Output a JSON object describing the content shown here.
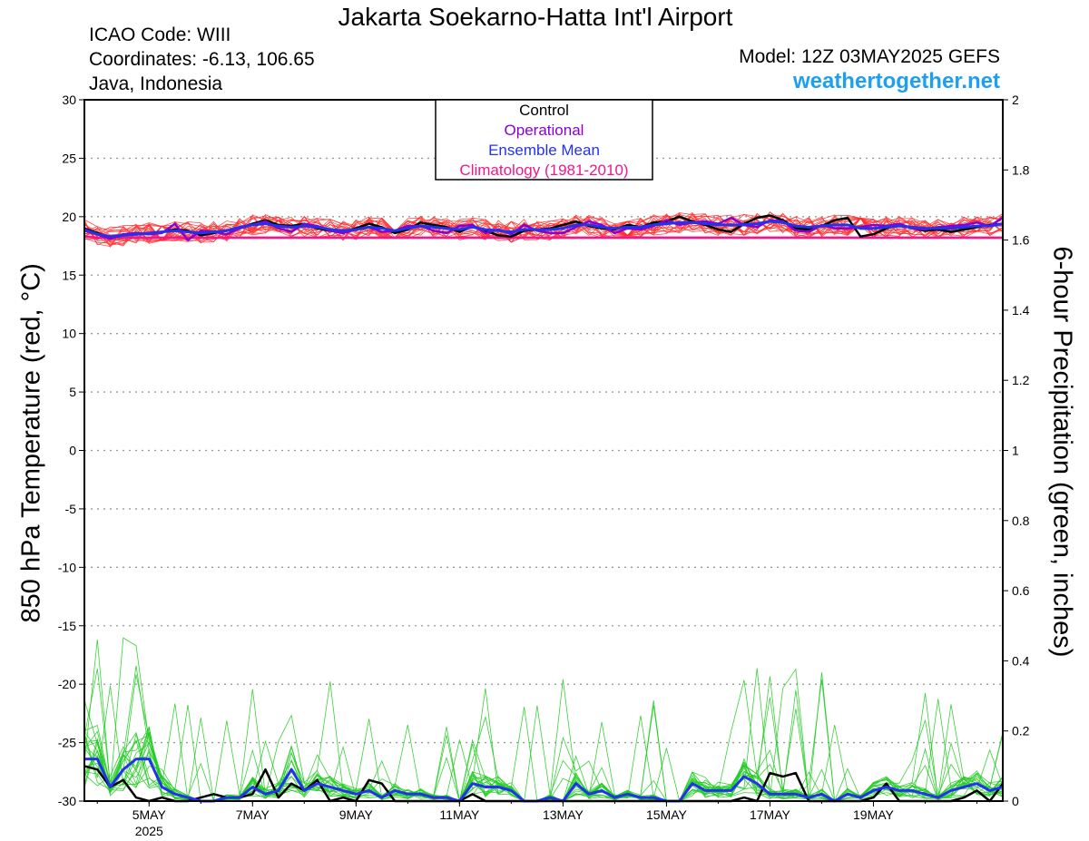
{
  "header": {
    "title": "Jakarta Soekarno-Hatta Int'l Airport",
    "icao": "ICAO Code: WIII",
    "coordinates": "Coordinates: -6.13, 106.65",
    "region": "Java, Indonesia",
    "model": "Model: 12Z 03MAY2025 GEFS",
    "site": "weathertogether.net"
  },
  "colors": {
    "control": "#000000",
    "operational": "#8a00d4",
    "ensemble_mean": "#2233ee",
    "climatology": "#f0188c",
    "members_temp": "#ff2a2a",
    "members_precip": "#22cc22",
    "site": "#1ea0f0"
  },
  "chart_data": {
    "type": "line",
    "ylabel": "850 hPa Temperature (red, °C)",
    "ylabel_right": "6-hour Precipitation (green, inches)",
    "ylim": [
      -30,
      30
    ],
    "ylim_right": [
      0,
      2
    ],
    "yticks": [
      "30",
      "25",
      "20",
      "15",
      "10",
      "5",
      "0",
      "-5",
      "-10",
      "-15",
      "-20",
      "-25",
      "-30"
    ],
    "yticks_right": [
      "2",
      "1.8",
      "1.6",
      "1.4",
      "1.2",
      "1",
      "0.8",
      "0.6",
      "0.4",
      "0.2",
      "0"
    ],
    "xtick_labels": [
      "5MAY",
      "7MAY",
      "9MAY",
      "11MAY",
      "13MAY",
      "15MAY",
      "17MAY",
      "19MAY"
    ],
    "xtick_sublabel": "2025",
    "x_start": "2025-05-03 18Z",
    "x_step_hours": 6,
    "grid": true,
    "legend_position": "top-center",
    "legend": [
      "Control",
      "Operational",
      "Ensemble Mean",
      "Climatology (1981-2010)"
    ],
    "series": [
      {
        "name": "Control",
        "axis": "temp",
        "values": [
          19.0,
          18.6,
          18.2,
          18.4,
          18.6,
          18.5,
          18.7,
          18.9,
          18.8,
          18.4,
          18.6,
          18.8,
          19.0,
          19.4,
          19.7,
          19.3,
          19.2,
          19.4,
          19.0,
          18.8,
          18.7,
          19.0,
          19.4,
          19.1,
          18.6,
          18.9,
          19.5,
          19.3,
          19.1,
          18.7,
          19.2,
          18.8,
          18.4,
          18.3,
          18.8,
          18.9,
          19.0,
          19.3,
          19.6,
          19.2,
          19.0,
          18.9,
          19.3,
          19.1,
          19.5,
          19.6,
          20.0,
          19.6,
          19.3,
          18.9,
          18.7,
          19.4,
          19.9,
          20.1,
          19.7,
          19.0,
          18.9,
          19.2,
          19.7,
          19.9,
          18.3,
          18.5,
          19.0,
          19.3,
          19.0,
          18.8,
          18.9,
          18.7,
          18.9,
          19.1,
          19.3,
          19.4
        ]
      },
      {
        "name": "Operational",
        "axis": "temp",
        "values": [
          18.8,
          18.5,
          18.1,
          18.5,
          18.6,
          18.5,
          18.6,
          19.4,
          18.0,
          18.8,
          18.7,
          18.5,
          19.0,
          19.3,
          19.6,
          19.0,
          18.7,
          19.4,
          19.2,
          18.8,
          18.6,
          18.9,
          19.1,
          18.7,
          18.8,
          19.2,
          19.2,
          18.8,
          18.6,
          19.2,
          19.3,
          18.6,
          18.9,
          18.5,
          19.3,
          18.8,
          18.6,
          18.6,
          19.1,
          19.6,
          19.3,
          18.6,
          19.0,
          18.9,
          19.2,
          19.7,
          19.3,
          19.5,
          19.6,
          19.4,
          19.9,
          19.3,
          19.1,
          19.7,
          19.6,
          18.8,
          18.7,
          19.3,
          19.0,
          19.0,
          19.1,
          19.3,
          19.2,
          19.4,
          19.0,
          18.9,
          19.1,
          19.2,
          19.3,
          19.5,
          19.2,
          19.9
        ]
      },
      {
        "name": "Ensemble Mean",
        "axis": "temp",
        "values": [
          18.9,
          18.5,
          18.3,
          18.4,
          18.5,
          18.6,
          18.7,
          18.8,
          18.7,
          18.6,
          18.7,
          18.8,
          19.1,
          19.3,
          19.4,
          19.2,
          19.1,
          19.2,
          19.1,
          18.9,
          18.8,
          18.9,
          19.1,
          19.0,
          18.8,
          19.0,
          19.2,
          19.1,
          19.0,
          18.9,
          19.1,
          18.9,
          18.8,
          18.7,
          18.9,
          18.9,
          18.9,
          19.0,
          19.3,
          19.3,
          19.1,
          19.0,
          19.1,
          19.1,
          19.3,
          19.4,
          19.5,
          19.5,
          19.4,
          19.3,
          19.3,
          19.3,
          19.4,
          19.6,
          19.5,
          19.2,
          19.1,
          19.2,
          19.3,
          19.3,
          19.0,
          19.0,
          19.1,
          19.2,
          19.1,
          19.0,
          19.0,
          19.0,
          19.1,
          19.2,
          19.2,
          19.4
        ]
      },
      {
        "name": "Climatology (1981-2010)",
        "axis": "temp",
        "values": [
          18.3,
          18.2,
          18.2,
          18.2,
          18.2,
          18.2,
          18.2,
          18.2,
          18.2,
          18.2,
          18.2,
          18.2,
          18.2,
          18.2,
          18.2,
          18.2,
          18.2,
          18.2,
          18.2,
          18.2,
          18.2,
          18.2,
          18.2,
          18.2,
          18.2,
          18.2,
          18.2,
          18.2,
          18.2,
          18.2,
          18.2,
          18.2,
          18.2,
          18.2,
          18.2,
          18.2,
          18.2,
          18.2,
          18.2,
          18.2,
          18.2,
          18.2,
          18.2,
          18.2,
          18.2,
          18.2,
          18.2,
          18.2,
          18.2,
          18.2,
          18.2,
          18.2,
          18.2,
          18.2,
          18.2,
          18.2,
          18.2,
          18.2,
          18.2,
          18.2,
          18.2,
          18.2,
          18.2,
          18.2,
          18.2,
          18.2,
          18.2,
          18.2,
          18.2,
          18.2,
          18.2,
          18.2
        ]
      },
      {
        "name": "Control",
        "axis": "precip",
        "values": [
          0.1,
          0.09,
          0.04,
          0.06,
          0.01,
          0.0,
          0.01,
          0.0,
          0.0,
          0.01,
          0.02,
          0.01,
          0.01,
          0.02,
          0.09,
          0.01,
          0.05,
          0.03,
          0.06,
          0.0,
          0.01,
          0.0,
          0.06,
          0.05,
          0.0,
          0.0,
          0.0,
          0.0,
          0.0,
          0.0,
          0.02,
          0.0,
          0.0,
          0.0,
          0.0,
          0.0,
          0.0,
          0.0,
          0.0,
          0.0,
          0.0,
          0.0,
          0.0,
          0.0,
          0.0,
          0.0,
          0.0,
          0.0,
          0.0,
          0.0,
          0.0,
          0.01,
          0.0,
          0.08,
          0.07,
          0.08,
          0.0,
          0.0,
          0.0,
          0.0,
          0.0,
          0.01,
          0.05,
          0.0,
          0.0,
          0.0,
          0.0,
          0.0,
          0.01,
          0.03,
          0.0,
          0.05
        ]
      },
      {
        "name": "Ensemble Mean",
        "axis": "precip",
        "values": [
          0.12,
          0.12,
          0.04,
          0.09,
          0.12,
          0.12,
          0.04,
          0.02,
          0.01,
          0.0,
          0.0,
          0.01,
          0.01,
          0.04,
          0.02,
          0.03,
          0.09,
          0.03,
          0.05,
          0.04,
          0.03,
          0.02,
          0.03,
          0.01,
          0.03,
          0.02,
          0.02,
          0.01,
          0.01,
          0.0,
          0.05,
          0.04,
          0.04,
          0.03,
          0.0,
          0.0,
          0.01,
          0.0,
          0.05,
          0.02,
          0.03,
          0.01,
          0.02,
          0.01,
          0.01,
          0.0,
          0.0,
          0.05,
          0.03,
          0.03,
          0.03,
          0.07,
          0.05,
          0.02,
          0.02,
          0.02,
          0.01,
          0.02,
          0.0,
          0.02,
          0.01,
          0.03,
          0.04,
          0.03,
          0.03,
          0.02,
          0.01,
          0.03,
          0.04,
          0.05,
          0.03,
          0.04
        ]
      }
    ]
  }
}
